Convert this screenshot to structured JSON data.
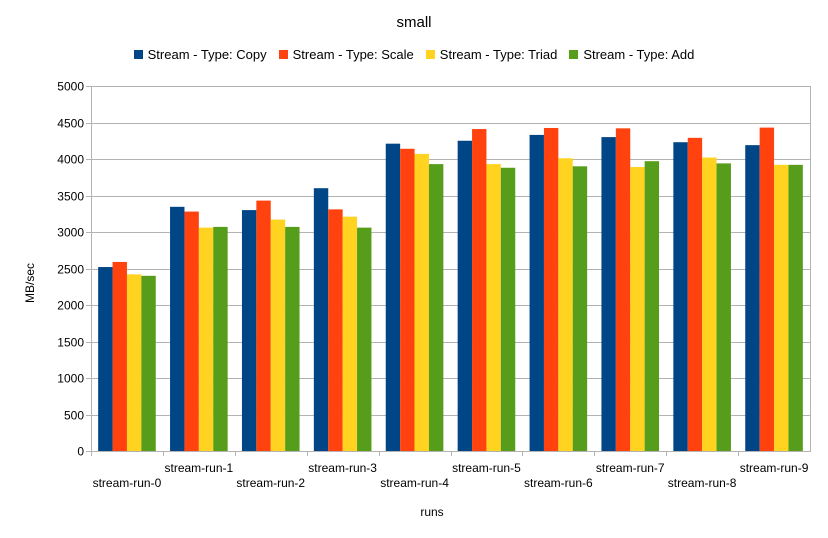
{
  "chart_data": {
    "type": "bar",
    "title": "small",
    "xlabel": "runs",
    "ylabel": "MB/sec",
    "ylim": [
      0,
      5000
    ],
    "yticks": [
      0,
      500,
      1000,
      1500,
      2000,
      2500,
      3000,
      3500,
      4000,
      4500,
      5000
    ],
    "grid": true,
    "legend_position": "top",
    "categories": [
      "stream-run-0",
      "stream-run-1",
      "stream-run-2",
      "stream-run-3",
      "stream-run-4",
      "stream-run-5",
      "stream-run-6",
      "stream-run-7",
      "stream-run-8",
      "stream-run-9"
    ],
    "series": [
      {
        "name": "Stream - Type: Copy",
        "color": "#004586",
        "values": [
          2520,
          3345,
          3300,
          3600,
          4210,
          4250,
          4330,
          4300,
          4230,
          4190
        ]
      },
      {
        "name": "Stream - Type: Scale",
        "color": "#ff420e",
        "values": [
          2590,
          3280,
          3430,
          3310,
          4140,
          4410,
          4425,
          4420,
          4290,
          4430
        ]
      },
      {
        "name": "Stream - Type: Triad",
        "color": "#ffd320",
        "values": [
          2420,
          3060,
          3170,
          3210,
          4070,
          3930,
          4010,
          3890,
          4020,
          3920
        ]
      },
      {
        "name": "Stream - Type: Add",
        "color": "#579d1c",
        "values": [
          2400,
          3070,
          3070,
          3060,
          3930,
          3880,
          3900,
          3970,
          3940,
          3920
        ]
      }
    ]
  }
}
